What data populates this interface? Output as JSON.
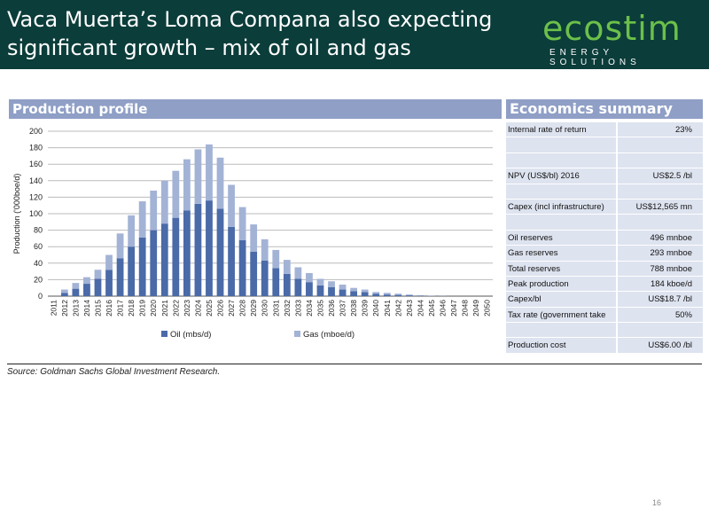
{
  "slide": {
    "title": "Vaca Muerta’s Loma Compana also expecting significant growth – mix of oil and gas",
    "page_number": "16",
    "source": "Source: Goldman Sachs Global Investment Research.",
    "colors": {
      "header_bg": "#0b3d3a",
      "panel_head": "#8f9fc6",
      "oil": "#4a6aa8",
      "gas": "#a3b3d6"
    }
  },
  "logo": {
    "word": "ecostim",
    "subtitle": "ENERGY SOLUTIONS"
  },
  "production": {
    "heading": "Production profile"
  },
  "economics": {
    "heading": "Economics summary",
    "rows": [
      {
        "label": "Internal rate of return",
        "value": "23%"
      },
      {
        "label": "",
        "value": ""
      },
      {
        "label": "",
        "value": ""
      },
      {
        "label": "NPV (US$/bl) 2016",
        "value": "US$2.5 /bl"
      },
      {
        "label": "",
        "value": ""
      },
      {
        "label": "Capex (incl infrastructure)",
        "value": "US$12,565 mn"
      },
      {
        "label": "",
        "value": ""
      },
      {
        "label": "Oil reserves",
        "value": "496 mnboe"
      },
      {
        "label": "Gas reserves",
        "value": "293 mnboe"
      },
      {
        "label": "Total reserves",
        "value": "788 mnboe"
      },
      {
        "label": "Peak production",
        "value": "184 kboe/d"
      },
      {
        "label": "Capex/bl",
        "value": "US$18.7 /bl"
      },
      {
        "label": "Tax rate (government take",
        "value": "50%"
      },
      {
        "label": "",
        "value": ""
      },
      {
        "label": "Production cost",
        "value": "US$6.00 /bl"
      }
    ]
  },
  "chart_data": {
    "type": "bar",
    "stacked": true,
    "title": "",
    "ylabel": "Production ('000boe/d)",
    "xlabel": "",
    "ylim": [
      0,
      200
    ],
    "yticks": [
      0,
      20,
      40,
      60,
      80,
      100,
      120,
      140,
      160,
      180,
      200
    ],
    "grid": true,
    "legend": "bottom",
    "categories": [
      "2011",
      "2012",
      "2013",
      "2014",
      "2015",
      "2016",
      "2017",
      "2018",
      "2019",
      "2020",
      "2021",
      "2022",
      "2023",
      "2024",
      "2025",
      "2026",
      "2027",
      "2028",
      "2029",
      "2030",
      "2031",
      "2032",
      "2033",
      "2034",
      "2035",
      "2036",
      "2037",
      "2038",
      "2039",
      "2040",
      "2041",
      "2042",
      "2043",
      "2044",
      "2045",
      "2046",
      "2047",
      "2048",
      "2049",
      "2050"
    ],
    "series": [
      {
        "name": "Oil (mbs/d)",
        "values": [
          0,
          4,
          9,
          15,
          21,
          32,
          46,
          60,
          71,
          80,
          88,
          95,
          104,
          112,
          116,
          106,
          84,
          68,
          54,
          43,
          34,
          27,
          21,
          17,
          13,
          11,
          8,
          6,
          5,
          3,
          2,
          1.5,
          1,
          0.5,
          0.3,
          0.2,
          0,
          0,
          0,
          0
        ]
      },
      {
        "name": "Gas (mboe/d)",
        "values": [
          0,
          4,
          7,
          8,
          11,
          18,
          30,
          38,
          44,
          48,
          52,
          57,
          62,
          66,
          68,
          62,
          51,
          40,
          33,
          26,
          22,
          17,
          14,
          11,
          8,
          7,
          6,
          4,
          3,
          2,
          2,
          1.5,
          1,
          0.5,
          0.2,
          0.1,
          0,
          0,
          0,
          0
        ]
      }
    ]
  }
}
